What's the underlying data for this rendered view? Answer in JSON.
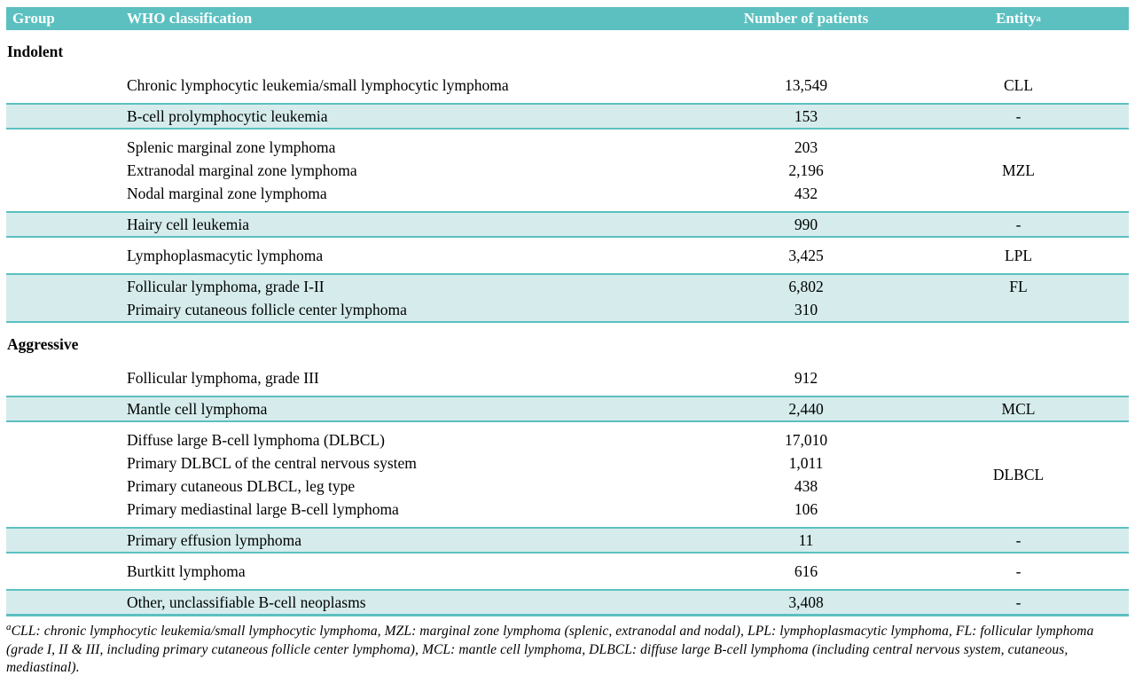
{
  "colors": {
    "header_bg": "#5cc0c0",
    "row_shaded": "#d6ecec",
    "divider": "#5cc0c0"
  },
  "table": {
    "headers": [
      "Group",
      "WHO classification",
      "Number of patients",
      "Entity"
    ],
    "entity_superscript": "a",
    "sections": [
      {
        "group": "Indolent",
        "rows": [
          {
            "shaded": false,
            "entity": "CLL",
            "lines": [
              {
                "name": "Chronic lymphocytic leukemia/small lymphocytic lymphoma",
                "patients": "13,549"
              }
            ]
          },
          {
            "shaded": true,
            "entity": "-",
            "lines": [
              {
                "name": "B-cell prolymphocytic leukemia",
                "patients": "153"
              }
            ]
          },
          {
            "shaded": false,
            "entity": "MZL",
            "lines": [
              {
                "name": "Splenic marginal zone lymphoma",
                "patients": "203"
              },
              {
                "name": "Extranodal marginal zone lymphoma",
                "patients": "2,196"
              },
              {
                "name": "Nodal marginal zone lymphoma",
                "patients": "432"
              }
            ]
          },
          {
            "shaded": true,
            "entity": "-",
            "lines": [
              {
                "name": "Hairy cell leukemia",
                "patients": "990"
              }
            ]
          },
          {
            "shaded": false,
            "entity": "LPL",
            "lines": [
              {
                "name": "Lymphoplasmacytic lymphoma",
                "patients": "3,425"
              }
            ]
          },
          {
            "shaded": true,
            "entity": "FL",
            "entity_valign": "top",
            "lines": [
              {
                "name": "Follicular lymphoma, grade I-II",
                "patients": "6,802"
              },
              {
                "name": "Primairy cutaneous follicle center lymphoma",
                "patients": "310"
              }
            ]
          }
        ]
      },
      {
        "group": "Aggressive",
        "rows": [
          {
            "shaded": false,
            "entity": "",
            "lines": [
              {
                "name": "Follicular lymphoma, grade III",
                "patients": "912"
              }
            ]
          },
          {
            "shaded": true,
            "entity": "MCL",
            "lines": [
              {
                "name": "Mantle cell lymphoma",
                "patients": "2,440"
              }
            ]
          },
          {
            "shaded": false,
            "entity": "DLBCL",
            "lines": [
              {
                "name": "Diffuse large B-cell lymphoma (DLBCL)",
                "patients": "17,010"
              },
              {
                "name": "Primary DLBCL of the central nervous system",
                "patients": "1,011"
              },
              {
                "name": "Primary cutaneous DLBCL, leg type",
                "patients": "438"
              },
              {
                "name": "Primary mediastinal large B-cell lymphoma",
                "patients": "106"
              }
            ]
          },
          {
            "shaded": true,
            "entity": "-",
            "lines": [
              {
                "name": "Primary effusion lymphoma",
                "patients": "11"
              }
            ]
          },
          {
            "shaded": false,
            "entity": "-",
            "lines": [
              {
                "name": "Burtkitt lymphoma",
                "patients": "616"
              }
            ]
          },
          {
            "shaded": true,
            "entity": "-",
            "lines": [
              {
                "name": "Other, unclassifiable B-cell neoplasms",
                "patients": "3,408"
              }
            ]
          }
        ]
      }
    ],
    "footnote_marker": "a",
    "footnote_text": "CLL: chronic lymphocytic leukemia/small lymphocytic lymphoma, MZL: marginal zone lymphoma (splenic, extranodal and nodal), LPL: lymphoplasmacytic lymphoma, FL: follicular lymphoma (grade I, II & III, including primary cutaneous follicle center lymphoma), MCL: mantle cell lymphoma, DLBCL: diffuse large B-cell lymphoma (including central nervous system, cutaneous, mediastinal)."
  }
}
